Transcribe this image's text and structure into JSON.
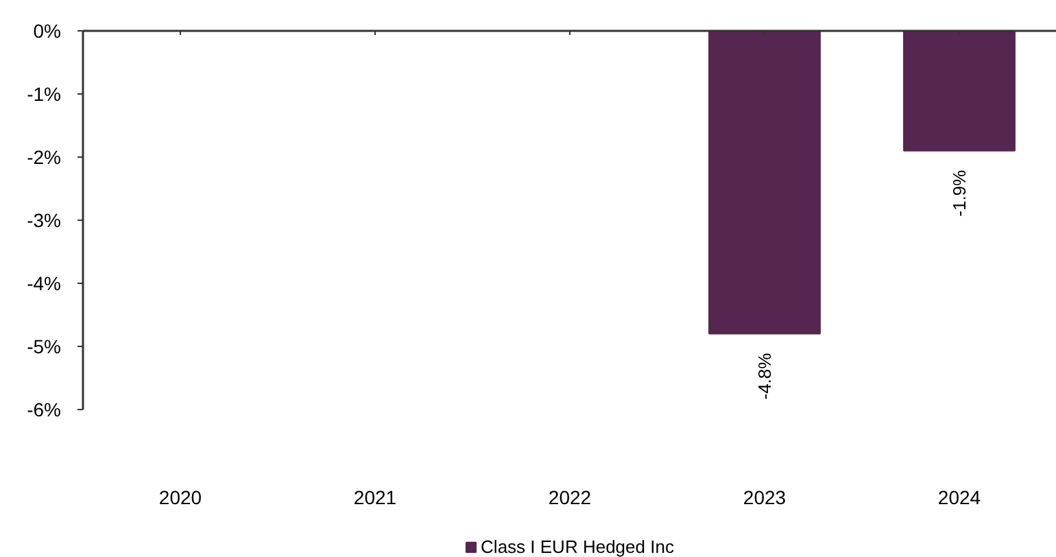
{
  "chart_data": {
    "type": "bar",
    "categories": [
      "2020",
      "2021",
      "2022",
      "2023",
      "2024"
    ],
    "series": [
      {
        "name": "Class I EUR Hedged Inc",
        "color": "#55264f",
        "values": [
          null,
          null,
          null,
          -4.8,
          -1.9
        ],
        "value_labels": [
          null,
          null,
          null,
          "-4.8%",
          "-1.9%"
        ]
      }
    ],
    "ylim": [
      -6,
      0
    ],
    "yticks": [
      {
        "value": 0,
        "label": "0%"
      },
      {
        "value": -1,
        "label": "-1%"
      },
      {
        "value": -2,
        "label": "-2%"
      },
      {
        "value": -3,
        "label": "-3%"
      },
      {
        "value": -4,
        "label": "-4%"
      },
      {
        "value": -5,
        "label": "-5%"
      },
      {
        "value": -6,
        "label": "-6%"
      }
    ],
    "legend": "bottom"
  }
}
